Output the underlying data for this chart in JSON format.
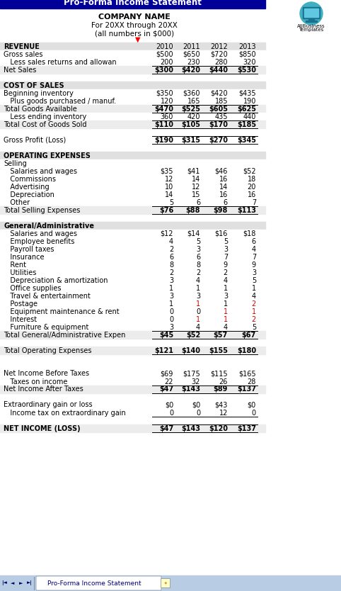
{
  "title": "Pro-Forma Income Statement",
  "company": "COMPANY NAME",
  "subtitle1": "For 20XX through 20XX",
  "subtitle2": "(all numbers in $000)",
  "years": [
    "2010",
    "2011",
    "2012",
    "2013"
  ],
  "header_bg": "#000099",
  "section_bg": "#e0e0e0",
  "subtotal_bg": "#ececec",
  "rows": [
    {
      "label": "REVENUE",
      "vals": [
        "2010",
        "2011",
        "2012",
        "2013"
      ],
      "style": "header_row"
    },
    {
      "label": "Gross sales",
      "vals": [
        "$500",
        "$650",
        "$720",
        "$850"
      ],
      "style": "normal"
    },
    {
      "label": "   Less sales returns and allowan",
      "vals": [
        "200",
        "230",
        "280",
        "320"
      ],
      "style": "normal",
      "underline": true
    },
    {
      "label": "Net Sales",
      "vals": [
        "$300",
        "$420",
        "$440",
        "$530"
      ],
      "style": "subtotal"
    },
    {
      "label": "",
      "vals": [
        "",
        "",
        "",
        ""
      ],
      "style": "blank"
    },
    {
      "label": "COST OF SALES",
      "vals": [
        "",
        "",
        "",
        ""
      ],
      "style": "section"
    },
    {
      "label": "Beginning inventory",
      "vals": [
        "$350",
        "$360",
        "$420",
        "$435"
      ],
      "style": "normal"
    },
    {
      "label": "   Plus goods purchased / manuf.",
      "vals": [
        "120",
        "165",
        "185",
        "190"
      ],
      "style": "normal",
      "underline": true
    },
    {
      "label": "Total Goods Available",
      "vals": [
        "$470",
        "$525",
        "$605",
        "$625"
      ],
      "style": "subtotal"
    },
    {
      "label": "   Less ending inventory",
      "vals": [
        "360",
        "420",
        "435",
        "440"
      ],
      "style": "normal",
      "underline": true
    },
    {
      "label": "Total Cost of Goods Sold",
      "vals": [
        "$110",
        "$105",
        "$170",
        "$185"
      ],
      "style": "subtotal"
    },
    {
      "label": "",
      "vals": [
        "",
        "",
        "",
        ""
      ],
      "style": "blank"
    },
    {
      "label": "Gross Profit (Loss)",
      "vals": [
        "$190",
        "$315",
        "$270",
        "$345"
      ],
      "style": "grossproft"
    },
    {
      "label": "",
      "vals": [
        "",
        "",
        "",
        ""
      ],
      "style": "blank"
    },
    {
      "label": "OPERATING EXPENSES",
      "vals": [
        "",
        "",
        "",
        ""
      ],
      "style": "section"
    },
    {
      "label": "Selling",
      "vals": [
        "",
        "",
        "",
        ""
      ],
      "style": "normal"
    },
    {
      "label": "   Salaries and wages",
      "vals": [
        "$35",
        "$41",
        "$46",
        "$52"
      ],
      "style": "normal"
    },
    {
      "label": "   Commissions",
      "vals": [
        "12",
        "14",
        "16",
        "18"
      ],
      "style": "normal"
    },
    {
      "label": "   Advertising",
      "vals": [
        "10",
        "12",
        "14",
        "20"
      ],
      "style": "normal"
    },
    {
      "label": "   Depreciation",
      "vals": [
        "14",
        "15",
        "16",
        "16"
      ],
      "style": "normal"
    },
    {
      "label": "   Other",
      "vals": [
        "5",
        "6",
        "6",
        "7"
      ],
      "style": "normal",
      "underline": true
    },
    {
      "label": "Total Selling Expenses",
      "vals": [
        "$76",
        "$88",
        "$98",
        "$113"
      ],
      "style": "subtotal"
    },
    {
      "label": "",
      "vals": [
        "",
        "",
        "",
        ""
      ],
      "style": "blank"
    },
    {
      "label": "General/Administrative",
      "vals": [
        "",
        "",
        "",
        ""
      ],
      "style": "section"
    },
    {
      "label": "   Salaries and wages",
      "vals": [
        "$12",
        "$14",
        "$16",
        "$18"
      ],
      "style": "normal"
    },
    {
      "label": "   Employee benefits",
      "vals": [
        "4",
        "5",
        "5",
        "6"
      ],
      "style": "normal"
    },
    {
      "label": "   Payroll taxes",
      "vals": [
        "2",
        "3",
        "3",
        "4"
      ],
      "style": "normal"
    },
    {
      "label": "   Insurance",
      "vals": [
        "6",
        "6",
        "7",
        "7"
      ],
      "style": "normal"
    },
    {
      "label": "   Rent",
      "vals": [
        "8",
        "8",
        "9",
        "9"
      ],
      "style": "normal"
    },
    {
      "label": "   Utilities",
      "vals": [
        "2",
        "2",
        "2",
        "3"
      ],
      "style": "normal"
    },
    {
      "label": "   Depreciation & amortization",
      "vals": [
        "3",
        "4",
        "4",
        "5"
      ],
      "style": "normal"
    },
    {
      "label": "   Office supplies",
      "vals": [
        "1",
        "1",
        "1",
        "1"
      ],
      "style": "normal"
    },
    {
      "label": "   Travel & entertainment",
      "vals": [
        "3",
        "3",
        "3",
        "4"
      ],
      "style": "normal"
    },
    {
      "label": "   Postage",
      "vals": [
        "1",
        "1",
        "1",
        "2"
      ],
      "style": "normal",
      "red_cols": [
        1,
        3
      ]
    },
    {
      "label": "   Equipment maintenance & rent",
      "vals": [
        "0",
        "0",
        "1",
        "1"
      ],
      "style": "normal",
      "red_cols": [
        2,
        3
      ]
    },
    {
      "label": "   Interest",
      "vals": [
        "0",
        "1",
        "1",
        "2"
      ],
      "style": "normal",
      "red_cols": [
        1,
        2,
        3
      ]
    },
    {
      "label": "   Furniture & equipment",
      "vals": [
        "3",
        "4",
        "4",
        "5"
      ],
      "style": "normal",
      "underline": true
    },
    {
      "label": "Total General/Administrative Expen",
      "vals": [
        "$45",
        "$52",
        "$57",
        "$67"
      ],
      "style": "subtotal"
    },
    {
      "label": "",
      "vals": [
        "",
        "",
        "",
        ""
      ],
      "style": "blank"
    },
    {
      "label": "Total Operating Expenses",
      "vals": [
        "$121",
        "$140",
        "$155",
        "$180"
      ],
      "style": "subtotal"
    },
    {
      "label": "",
      "vals": [
        "",
        "",
        "",
        ""
      ],
      "style": "blank"
    },
    {
      "label": "",
      "vals": [
        "",
        "",
        "",
        ""
      ],
      "style": "blank"
    },
    {
      "label": "Net Income Before Taxes",
      "vals": [
        "$69",
        "$175",
        "$115",
        "$165"
      ],
      "style": "normal"
    },
    {
      "label": "   Taxes on income",
      "vals": [
        "22",
        "32",
        "26",
        "28"
      ],
      "style": "normal",
      "underline": true
    },
    {
      "label": "Net Income After Taxes",
      "vals": [
        "$47",
        "$143",
        "$89",
        "$137"
      ],
      "style": "subtotal"
    },
    {
      "label": "",
      "vals": [
        "",
        "",
        "",
        ""
      ],
      "style": "blank"
    },
    {
      "label": "Extraordinary gain or loss",
      "vals": [
        "$0",
        "$0",
        "$43",
        "$0"
      ],
      "style": "normal"
    },
    {
      "label": "   Income tax on extraordinary gain",
      "vals": [
        "0",
        "0",
        "12",
        "0"
      ],
      "style": "normal",
      "underline": true
    },
    {
      "label": "",
      "vals": [
        "",
        "",
        "",
        ""
      ],
      "style": "blank"
    },
    {
      "label": "NET INCOME (LOSS)",
      "vals": [
        "$47",
        "$143",
        "$120",
        "$137"
      ],
      "style": "netincome"
    }
  ],
  "footer_text": "Pro-Forma Income Statement"
}
